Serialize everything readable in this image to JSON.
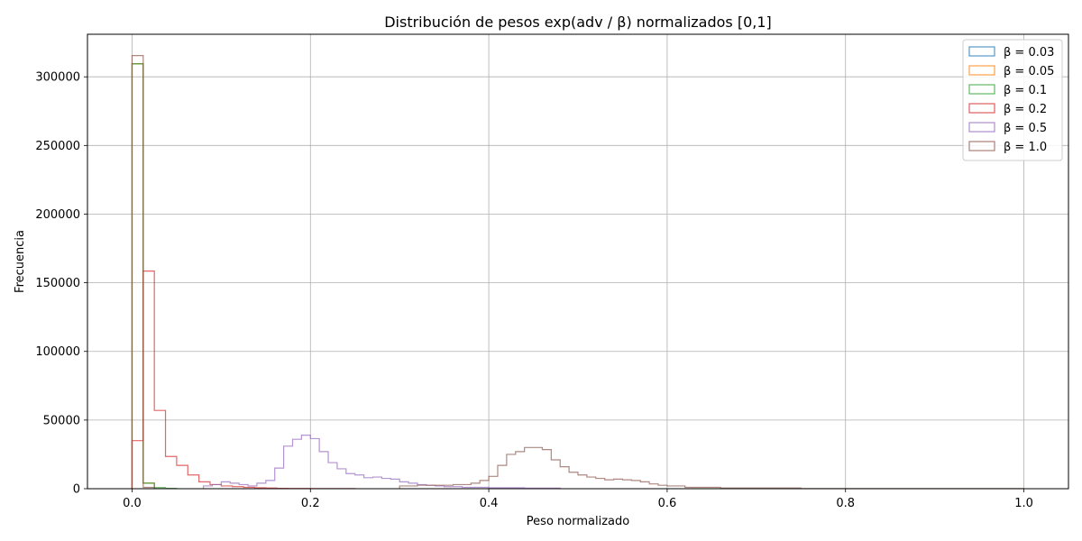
{
  "chart_data": {
    "type": "histogram",
    "title": "Distribución de pesos exp(adv / β) normalizados [0,1]",
    "xlabel": "Peso normalizado",
    "ylabel": "Frecuencia",
    "xlim": [
      -0.05,
      1.05
    ],
    "ylim": [
      0,
      331000
    ],
    "xticks": [
      0.0,
      0.2,
      0.4,
      0.6,
      0.8,
      1.0
    ],
    "xtick_labels": [
      "0.0",
      "0.2",
      "0.4",
      "0.6",
      "0.8",
      "1.0"
    ],
    "yticks": [
      0,
      50000,
      100000,
      150000,
      200000,
      250000,
      300000
    ],
    "ytick_labels": [
      "0",
      "50000",
      "100000",
      "150000",
      "200000",
      "250000",
      "300000"
    ],
    "grid": true,
    "legend_position": "top-right",
    "histtype": "step",
    "series": [
      {
        "name": "β = 0.03",
        "color": "#1f77b4",
        "bins": [
          [
            0.0,
            0.0125,
            309500
          ],
          [
            0.0125,
            0.025,
            4000
          ]
        ]
      },
      {
        "name": "β = 0.05",
        "color": "#ff7f0e",
        "bins": [
          [
            0.0,
            0.0125,
            309500
          ],
          [
            0.0125,
            0.025,
            4000
          ]
        ]
      },
      {
        "name": "β = 0.1",
        "color": "#2ca02c",
        "bins": [
          [
            0.0,
            0.0125,
            309500
          ],
          [
            0.0125,
            0.025,
            4000
          ],
          [
            0.025,
            0.0375,
            800
          ],
          [
            0.0375,
            0.05,
            300
          ]
        ]
      },
      {
        "name": "β = 0.2",
        "color": "#d62728",
        "bins": [
          [
            0.0,
            0.0125,
            35000
          ],
          [
            0.0125,
            0.025,
            158500
          ],
          [
            0.025,
            0.0375,
            57000
          ],
          [
            0.0375,
            0.05,
            23500
          ],
          [
            0.05,
            0.0625,
            17000
          ],
          [
            0.0625,
            0.075,
            10000
          ],
          [
            0.075,
            0.0875,
            5000
          ],
          [
            0.0875,
            0.1,
            3000
          ],
          [
            0.1,
            0.1125,
            2000
          ],
          [
            0.1125,
            0.125,
            1500
          ],
          [
            0.125,
            0.1375,
            1000
          ],
          [
            0.1375,
            0.15,
            700
          ],
          [
            0.15,
            0.1625,
            500
          ],
          [
            0.1625,
            0.175,
            300
          ],
          [
            0.175,
            0.2,
            200
          ],
          [
            0.2,
            0.25,
            100
          ]
        ]
      },
      {
        "name": "β = 0.5",
        "color": "#9467bd",
        "bins": [
          [
            0.08,
            0.09,
            2000
          ],
          [
            0.09,
            0.1,
            3000
          ],
          [
            0.1,
            0.11,
            5000
          ],
          [
            0.11,
            0.12,
            4000
          ],
          [
            0.12,
            0.13,
            3000
          ],
          [
            0.13,
            0.14,
            2000
          ],
          [
            0.14,
            0.15,
            4000
          ],
          [
            0.15,
            0.16,
            6000
          ],
          [
            0.16,
            0.17,
            15000
          ],
          [
            0.17,
            0.18,
            31000
          ],
          [
            0.18,
            0.19,
            36000
          ],
          [
            0.19,
            0.2,
            39000
          ],
          [
            0.2,
            0.21,
            36500
          ],
          [
            0.21,
            0.22,
            27000
          ],
          [
            0.22,
            0.23,
            19000
          ],
          [
            0.23,
            0.24,
            14500
          ],
          [
            0.24,
            0.25,
            11000
          ],
          [
            0.25,
            0.26,
            10000
          ],
          [
            0.26,
            0.27,
            8000
          ],
          [
            0.27,
            0.28,
            8500
          ],
          [
            0.28,
            0.29,
            7500
          ],
          [
            0.29,
            0.3,
            7000
          ],
          [
            0.3,
            0.31,
            5000
          ],
          [
            0.31,
            0.32,
            4000
          ],
          [
            0.32,
            0.33,
            3000
          ],
          [
            0.33,
            0.34,
            2500
          ],
          [
            0.34,
            0.35,
            2000
          ],
          [
            0.35,
            0.37,
            1500
          ],
          [
            0.37,
            0.4,
            1000
          ],
          [
            0.4,
            0.44,
            700
          ],
          [
            0.44,
            0.48,
            400
          ]
        ]
      },
      {
        "name": "β = 1.0",
        "color": "#8c564b",
        "bins": [
          [
            0.0,
            0.0125,
            315500
          ],
          [
            0.0125,
            0.025,
            1000
          ],
          [
            0.3,
            0.32,
            2000
          ],
          [
            0.32,
            0.34,
            2500
          ],
          [
            0.34,
            0.36,
            2500
          ],
          [
            0.36,
            0.38,
            3000
          ],
          [
            0.38,
            0.39,
            4000
          ],
          [
            0.39,
            0.4,
            6000
          ],
          [
            0.4,
            0.41,
            9000
          ],
          [
            0.41,
            0.42,
            17000
          ],
          [
            0.42,
            0.43,
            25000
          ],
          [
            0.43,
            0.44,
            27000
          ],
          [
            0.44,
            0.45,
            30000
          ],
          [
            0.45,
            0.46,
            30000
          ],
          [
            0.46,
            0.47,
            28500
          ],
          [
            0.47,
            0.48,
            21000
          ],
          [
            0.48,
            0.49,
            16000
          ],
          [
            0.49,
            0.5,
            12000
          ],
          [
            0.5,
            0.51,
            10000
          ],
          [
            0.51,
            0.52,
            8500
          ],
          [
            0.52,
            0.53,
            7500
          ],
          [
            0.53,
            0.54,
            6500
          ],
          [
            0.54,
            0.55,
            7000
          ],
          [
            0.55,
            0.56,
            6500
          ],
          [
            0.56,
            0.57,
            6000
          ],
          [
            0.57,
            0.58,
            5000
          ],
          [
            0.58,
            0.59,
            3500
          ],
          [
            0.59,
            0.6,
            2500
          ],
          [
            0.6,
            0.62,
            2000
          ],
          [
            0.62,
            0.66,
            1000
          ],
          [
            0.66,
            0.75,
            500
          ],
          [
            0.75,
            1.0,
            100
          ]
        ]
      }
    ]
  }
}
